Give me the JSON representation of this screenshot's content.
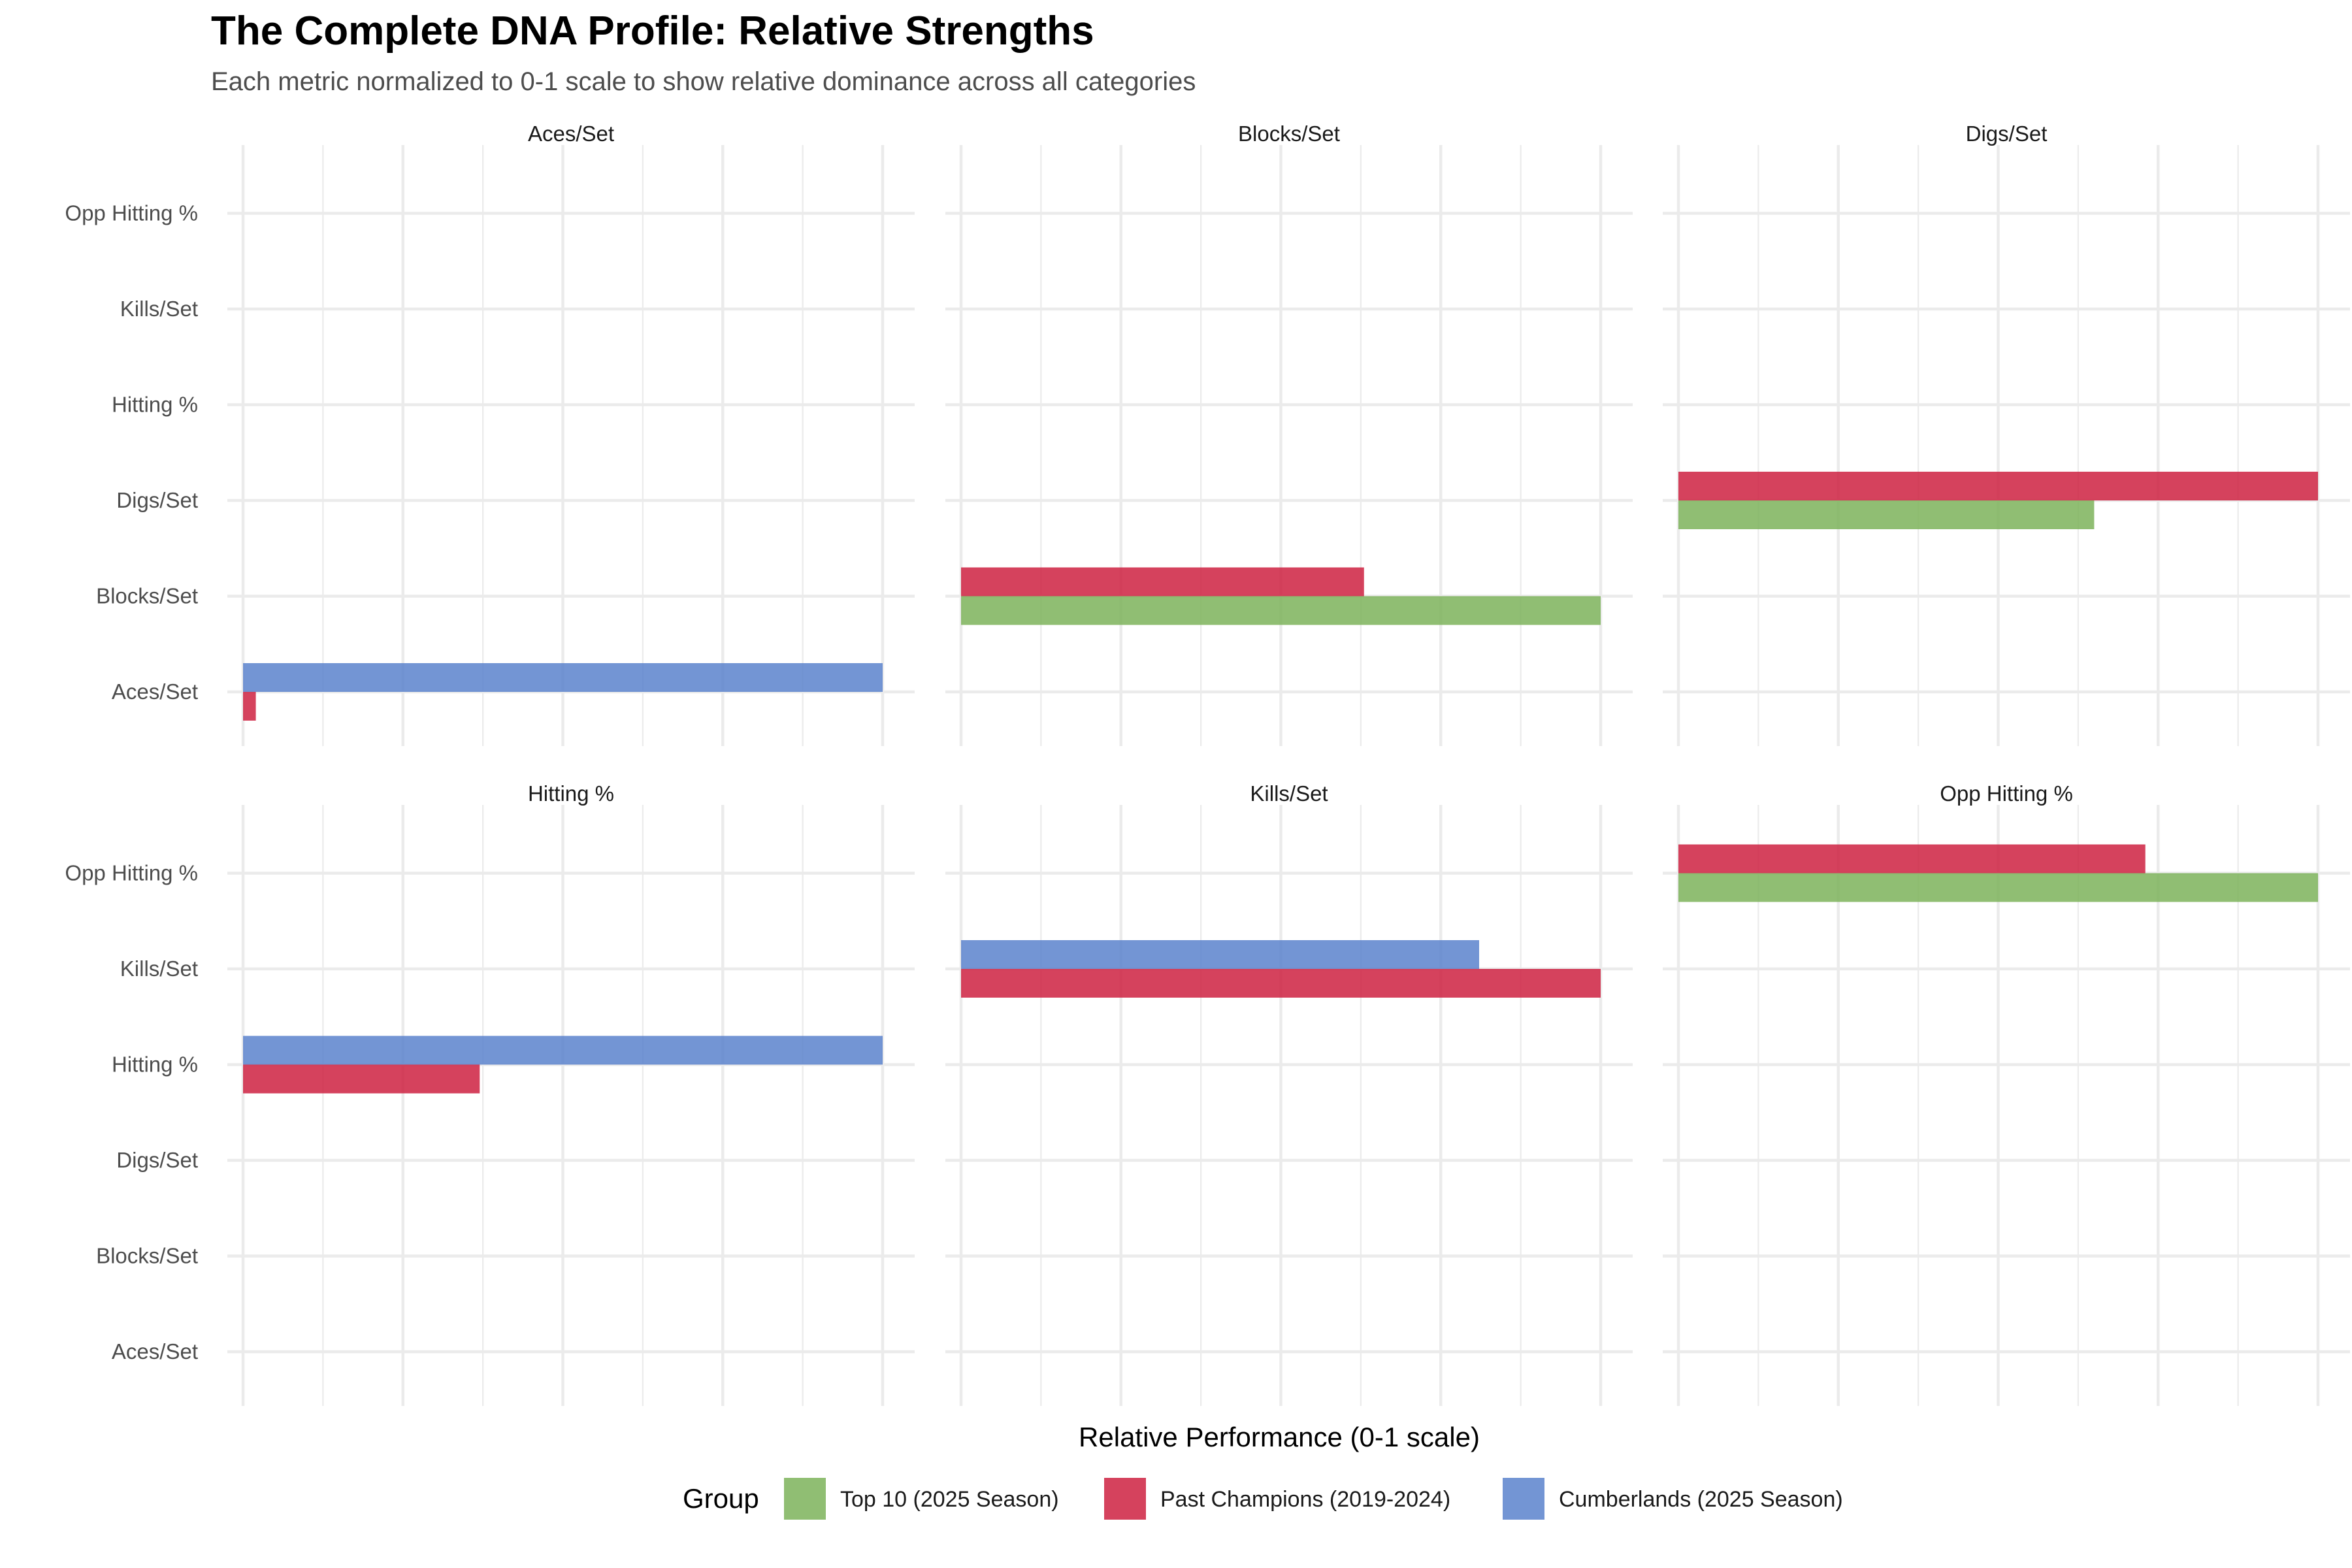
{
  "chart_data": {
    "type": "bar",
    "orientation": "horizontal",
    "title": "The Complete DNA Profile: Relative Strengths",
    "subtitle": "Each metric normalized to 0-1 scale to show relative dominance across all categories",
    "xlabel": "Relative Performance (0-1 scale)",
    "ylabel": "",
    "xlim": [
      0,
      1
    ],
    "x_tick_labels_shown": false,
    "grid": true,
    "categories": [
      "Aces/Set",
      "Blocks/Set",
      "Digs/Set",
      "Hitting %",
      "Kills/Set",
      "Opp Hitting %"
    ],
    "legend": {
      "title": "Group",
      "position": "bottom",
      "entries": [
        {
          "name": "Top 10 (2025 Season)",
          "color": "#7CB35B"
        },
        {
          "name": "Past Champions (2019-2024)",
          "color": "#CE2141"
        },
        {
          "name": "Cumberlands (2025 Season)",
          "color": "#5B83CC"
        }
      ]
    },
    "panels": [
      {
        "title": "Aces/Set",
        "bars": [
          {
            "category": "Aces/Set",
            "group": "Cumberlands (2025 Season)",
            "value": 1.0
          },
          {
            "category": "Aces/Set",
            "group": "Past Champions (2019-2024)",
            "value": 0.02
          }
        ]
      },
      {
        "title": "Blocks/Set",
        "bars": [
          {
            "category": "Blocks/Set",
            "group": "Past Champions (2019-2024)",
            "value": 0.63
          },
          {
            "category": "Blocks/Set",
            "group": "Top 10 (2025 Season)",
            "value": 1.0
          }
        ]
      },
      {
        "title": "Digs/Set",
        "bars": [
          {
            "category": "Digs/Set",
            "group": "Past Champions (2019-2024)",
            "value": 1.0
          },
          {
            "category": "Digs/Set",
            "group": "Top 10 (2025 Season)",
            "value": 0.65
          }
        ]
      },
      {
        "title": "Hitting %",
        "bars": [
          {
            "category": "Hitting %",
            "group": "Cumberlands (2025 Season)",
            "value": 1.0
          },
          {
            "category": "Hitting %",
            "group": "Past Champions (2019-2024)",
            "value": 0.37
          }
        ]
      },
      {
        "title": "Kills/Set",
        "bars": [
          {
            "category": "Kills/Set",
            "group": "Cumberlands (2025 Season)",
            "value": 0.81
          },
          {
            "category": "Kills/Set",
            "group": "Past Champions (2019-2024)",
            "value": 1.0
          }
        ]
      },
      {
        "title": "Opp Hitting %",
        "bars": [
          {
            "category": "Opp Hitting %",
            "group": "Past Champions (2019-2024)",
            "value": 0.73
          },
          {
            "category": "Opp Hitting %",
            "group": "Top 10 (2025 Season)",
            "value": 1.0
          }
        ]
      }
    ]
  }
}
